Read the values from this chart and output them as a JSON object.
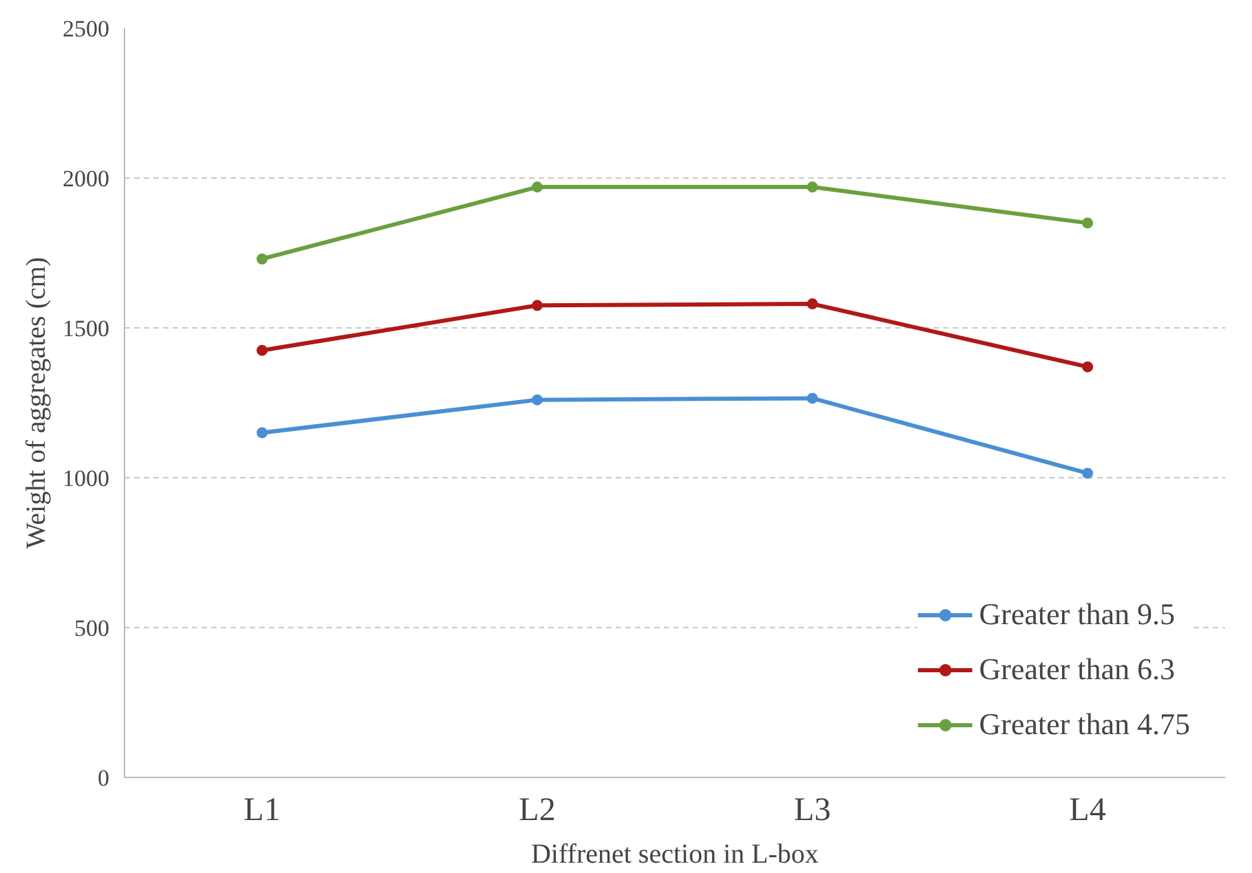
{
  "chart_data": {
    "type": "line",
    "xlabel": "Diffrenet section in L-box",
    "ylabel": "Weight of aggregates (cm)",
    "categories": [
      "L1",
      "L2",
      "L3",
      "L4"
    ],
    "series": [
      {
        "name": "Greater than 9.5",
        "color": "#4a8fd4",
        "values": [
          1150,
          1260,
          1265,
          1015
        ]
      },
      {
        "name": "Greater than 6.3",
        "color": "#b01818",
        "values": [
          1425,
          1575,
          1580,
          1370
        ]
      },
      {
        "name": "Greater than 4.75",
        "color": "#6aa040",
        "values": [
          1730,
          1970,
          1970,
          1850
        ]
      }
    ],
    "ylim": [
      0,
      2500
    ],
    "yticks": [
      0,
      500,
      1000,
      1500,
      2000,
      2500
    ],
    "grid": "y",
    "legend": "bottom right",
    "marker": "circle",
    "line_style": "solid"
  }
}
